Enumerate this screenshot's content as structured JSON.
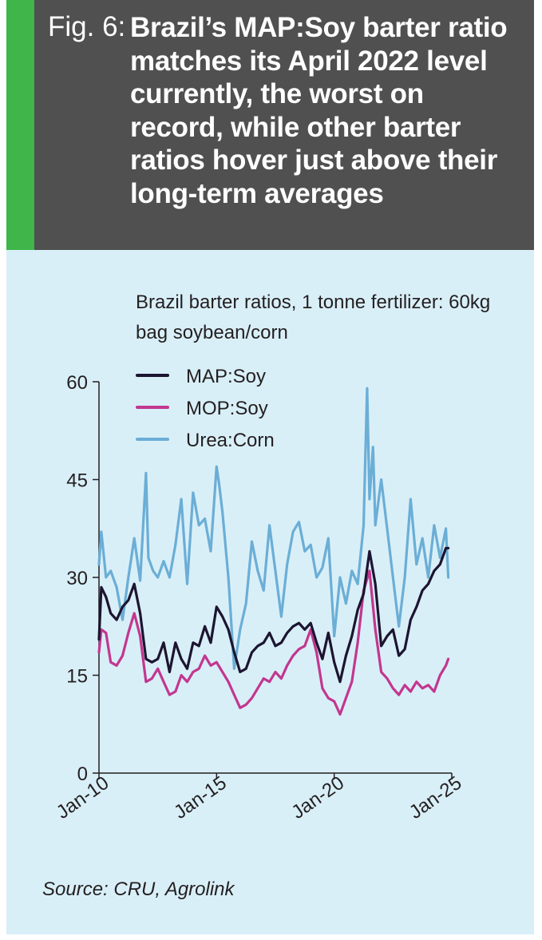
{
  "header": {
    "fig_label": "Fig. 6:",
    "title": "Brazil’s MAP:Soy barter ratio matches its April 2022 level currently, the worst on record, while other barter ratios hover just above their long-term averages"
  },
  "source": "Source: CRU, Agrolink",
  "colors": {
    "header_bg": "#505050",
    "accent_stripe": "#3fb54a",
    "panel_bg": "#d9eff8"
  },
  "chart_data": {
    "type": "line",
    "title": "Brazil barter ratios, 1 tonne fertilizer: 60kg bag soybean/corn",
    "xlabel": "",
    "ylabel": "",
    "xlim": [
      2010.0,
      2025.0
    ],
    "ylim": [
      0,
      60
    ],
    "yticks": [
      0,
      15,
      30,
      45,
      60
    ],
    "xticks": [
      {
        "value": 2010.0,
        "label": "Jan-10"
      },
      {
        "value": 2015.0,
        "label": "Jan-15"
      },
      {
        "value": 2020.0,
        "label": "Jan-20"
      },
      {
        "value": 2025.0,
        "label": "Jan-25"
      }
    ],
    "grid": false,
    "legend": "top-left",
    "series": [
      {
        "name": "MAP:Soy",
        "color": "#1c1530",
        "x": [
          2010.0,
          2010.1,
          2010.3,
          2010.5,
          2010.75,
          2011.0,
          2011.25,
          2011.5,
          2011.75,
          2012.0,
          2012.25,
          2012.5,
          2012.75,
          2013.0,
          2013.25,
          2013.5,
          2013.75,
          2014.0,
          2014.25,
          2014.5,
          2014.75,
          2015.0,
          2015.25,
          2015.5,
          2015.75,
          2016.0,
          2016.25,
          2016.5,
          2016.75,
          2017.0,
          2017.25,
          2017.5,
          2017.75,
          2018.0,
          2018.25,
          2018.5,
          2018.75,
          2019.0,
          2019.25,
          2019.5,
          2019.75,
          2020.0,
          2020.25,
          2020.5,
          2020.75,
          2021.0,
          2021.25,
          2021.5,
          2021.75,
          2022.0,
          2022.25,
          2022.5,
          2022.75,
          2023.0,
          2023.25,
          2023.5,
          2023.75,
          2024.0,
          2024.25,
          2024.5,
          2024.75,
          2024.85
        ],
        "values": [
          20.5,
          28.5,
          27.0,
          24.5,
          23.5,
          25.5,
          26.5,
          29.0,
          24.5,
          17.5,
          17.0,
          17.5,
          20.0,
          15.5,
          20.0,
          17.5,
          16.0,
          20.0,
          19.5,
          22.5,
          20.0,
          25.5,
          24.0,
          22.0,
          18.5,
          15.5,
          16.0,
          18.5,
          19.5,
          20.0,
          21.5,
          19.5,
          20.0,
          21.5,
          22.5,
          23.0,
          22.0,
          23.0,
          20.0,
          17.5,
          21.5,
          17.0,
          14.0,
          18.0,
          21.0,
          25.0,
          27.5,
          34.0,
          29.0,
          19.5,
          21.0,
          22.0,
          18.0,
          19.0,
          23.5,
          25.5,
          28.0,
          29.0,
          31.0,
          32.0,
          34.5,
          34.5
        ]
      },
      {
        "name": "MOP:Soy",
        "color": "#c2378f",
        "x": [
          2010.0,
          2010.1,
          2010.3,
          2010.5,
          2010.75,
          2011.0,
          2011.25,
          2011.5,
          2011.75,
          2012.0,
          2012.25,
          2012.5,
          2012.75,
          2013.0,
          2013.25,
          2013.5,
          2013.75,
          2014.0,
          2014.25,
          2014.5,
          2014.75,
          2015.0,
          2015.25,
          2015.5,
          2015.75,
          2016.0,
          2016.25,
          2016.5,
          2016.75,
          2017.0,
          2017.25,
          2017.5,
          2017.75,
          2018.0,
          2018.25,
          2018.5,
          2018.75,
          2019.0,
          2019.25,
          2019.5,
          2019.75,
          2020.0,
          2020.25,
          2020.5,
          2020.75,
          2021.0,
          2021.25,
          2021.5,
          2021.75,
          2022.0,
          2022.25,
          2022.5,
          2022.75,
          2023.0,
          2023.25,
          2023.5,
          2023.75,
          2024.0,
          2024.25,
          2024.5,
          2024.75,
          2024.85
        ],
        "values": [
          18.5,
          22.0,
          21.5,
          17.0,
          16.5,
          18.0,
          21.5,
          24.5,
          21.0,
          14.0,
          14.5,
          16.0,
          14.0,
          12.0,
          12.5,
          15.0,
          14.0,
          15.5,
          16.0,
          18.0,
          16.5,
          17.0,
          15.5,
          14.0,
          12.0,
          10.0,
          10.5,
          11.5,
          13.0,
          14.5,
          14.0,
          15.5,
          14.5,
          16.5,
          18.0,
          19.0,
          19.5,
          22.0,
          18.5,
          13.0,
          11.5,
          11.0,
          9.0,
          11.5,
          14.0,
          20.0,
          28.0,
          31.0,
          22.0,
          15.5,
          14.5,
          13.0,
          12.0,
          13.5,
          12.5,
          14.0,
          13.0,
          13.5,
          12.5,
          15.0,
          16.5,
          17.5
        ]
      },
      {
        "name": "Urea:Corn",
        "color": "#6baed6",
        "x": [
          2010.0,
          2010.1,
          2010.3,
          2010.5,
          2010.75,
          2011.0,
          2011.25,
          2011.5,
          2011.75,
          2012.0,
          2012.1,
          2012.3,
          2012.5,
          2012.75,
          2013.0,
          2013.25,
          2013.5,
          2013.75,
          2014.0,
          2014.25,
          2014.5,
          2014.75,
          2015.0,
          2015.1,
          2015.25,
          2015.5,
          2015.75,
          2016.0,
          2016.25,
          2016.5,
          2016.75,
          2017.0,
          2017.25,
          2017.5,
          2017.75,
          2018.0,
          2018.25,
          2018.5,
          2018.75,
          2019.0,
          2019.25,
          2019.5,
          2019.75,
          2020.0,
          2020.25,
          2020.5,
          2020.75,
          2021.0,
          2021.25,
          2021.4,
          2021.5,
          2021.65,
          2021.75,
          2022.0,
          2022.25,
          2022.5,
          2022.75,
          2023.0,
          2023.25,
          2023.5,
          2023.75,
          2024.0,
          2024.25,
          2024.5,
          2024.75,
          2024.85
        ],
        "values": [
          32.0,
          37.0,
          30.0,
          31.0,
          28.5,
          23.5,
          30.0,
          36.0,
          29.5,
          46.0,
          33.0,
          31.0,
          30.0,
          32.5,
          30.0,
          35.0,
          42.0,
          29.0,
          43.0,
          38.0,
          39.0,
          34.0,
          47.0,
          44.5,
          40.0,
          30.0,
          16.0,
          22.0,
          26.0,
          35.5,
          31.0,
          28.0,
          38.0,
          31.0,
          24.0,
          32.0,
          37.0,
          38.5,
          34.0,
          35.0,
          30.0,
          31.5,
          36.0,
          21.0,
          30.0,
          26.0,
          31.0,
          29.0,
          38.0,
          59.0,
          42.0,
          50.0,
          38.0,
          45.0,
          37.5,
          30.0,
          22.5,
          30.0,
          42.0,
          32.0,
          36.0,
          30.0,
          38.0,
          33.0,
          37.5,
          30.0
        ]
      }
    ]
  }
}
